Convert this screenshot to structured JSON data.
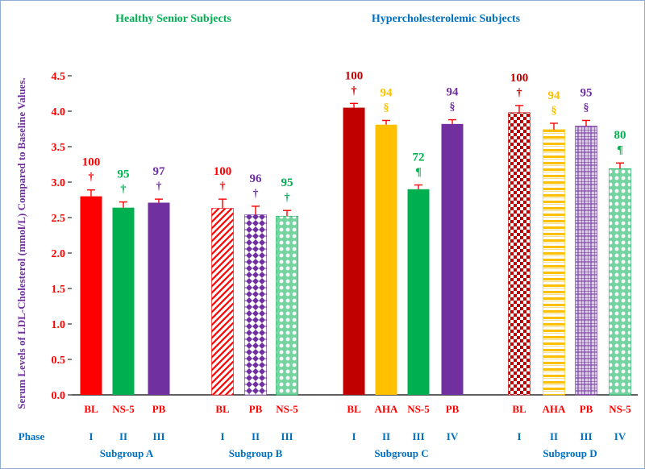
{
  "chart_data": {
    "type": "bar",
    "ylabel": "Serum Levels of LDL-Cholesterol (mmol/L) Compared to Baseline Values.",
    "ylim": [
      0,
      4.5
    ],
    "yticks": [
      "0.0",
      "0.5",
      "1.0",
      "1.5",
      "2.0",
      "2.5",
      "3.0",
      "3.5",
      "4.0",
      "4.5"
    ],
    "group_headers": [
      "Healthy Senior Subjects",
      "Hypercholesterolemic Subjects"
    ],
    "phase_label": "Phase",
    "subgroups": [
      {
        "name": "Subgroup  A",
        "bars": [
          {
            "label": "BL",
            "phase": "I",
            "value": 2.8,
            "error": 0.09,
            "percent": "100",
            "symbol": "†",
            "color": "#ff0000",
            "pattern": "solid"
          },
          {
            "label": "NS-5",
            "phase": "II",
            "value": 2.64,
            "error": 0.08,
            "percent": "95",
            "symbol": "†",
            "color": "#00b050",
            "pattern": "solid"
          },
          {
            "label": "PB",
            "phase": "III",
            "value": 2.71,
            "error": 0.05,
            "percent": "97",
            "symbol": "†",
            "color": "#7030a0",
            "pattern": "solid"
          }
        ]
      },
      {
        "name": "Subgroup  B",
        "bars": [
          {
            "label": "BL",
            "phase": "I",
            "value": 2.63,
            "error": 0.13,
            "percent": "100",
            "symbol": "†",
            "color": "#ff0000",
            "pattern": "diag"
          },
          {
            "label": "PB",
            "phase": "II",
            "value": 2.54,
            "error": 0.12,
            "percent": "96",
            "symbol": "†",
            "color": "#7030a0",
            "pattern": "diamond"
          },
          {
            "label": "NS-5",
            "phase": "III",
            "value": 2.52,
            "error": 0.08,
            "percent": "95",
            "symbol": "†",
            "color": "#00b050",
            "pattern": "circles"
          }
        ]
      },
      {
        "name": "Subgroup  C",
        "bars": [
          {
            "label": "BL",
            "phase": "I",
            "value": 4.05,
            "error": 0.06,
            "percent": "100",
            "symbol": "†",
            "color": "#c00000",
            "pattern": "solid"
          },
          {
            "label": "AHA",
            "phase": "II",
            "value": 3.81,
            "error": 0.06,
            "percent": "94",
            "symbol": "§",
            "color": "#ffc000",
            "pattern": "solid"
          },
          {
            "label": "NS-5",
            "phase": "III",
            "value": 2.9,
            "error": 0.06,
            "percent": "72",
            "symbol": "¶",
            "color": "#00b050",
            "pattern": "solid"
          },
          {
            "label": "PB",
            "phase": "IV",
            "value": 3.82,
            "error": 0.06,
            "percent": "94",
            "symbol": "§",
            "color": "#7030a0",
            "pattern": "solid"
          }
        ]
      },
      {
        "name": "Subgroup  D",
        "bars": [
          {
            "label": "BL",
            "phase": "I",
            "value": 3.98,
            "error": 0.1,
            "percent": "100",
            "symbol": "†",
            "color": "#c00000",
            "pattern": "checker"
          },
          {
            "label": "AHA",
            "phase": "II",
            "value": 3.74,
            "error": 0.09,
            "percent": "94",
            "symbol": "§",
            "color": "#ffc000",
            "pattern": "hstripe"
          },
          {
            "label": "PB",
            "phase": "III",
            "value": 3.79,
            "error": 0.08,
            "percent": "95",
            "symbol": "§",
            "color": "#7030a0",
            "pattern": "grid"
          },
          {
            "label": "NS-5",
            "phase": "IV",
            "value": 3.19,
            "error": 0.08,
            "percent": "80",
            "symbol": "¶",
            "color": "#00b050",
            "pattern": "circles"
          }
        ]
      }
    ]
  },
  "colors": {
    "axis_text": "#ff0000",
    "ylabel": "#7030a0",
    "phase_text": "#0070c0",
    "header_healthy": "#00b050",
    "header_hyper": "#0070c0",
    "error_bar": "#ff0000"
  }
}
